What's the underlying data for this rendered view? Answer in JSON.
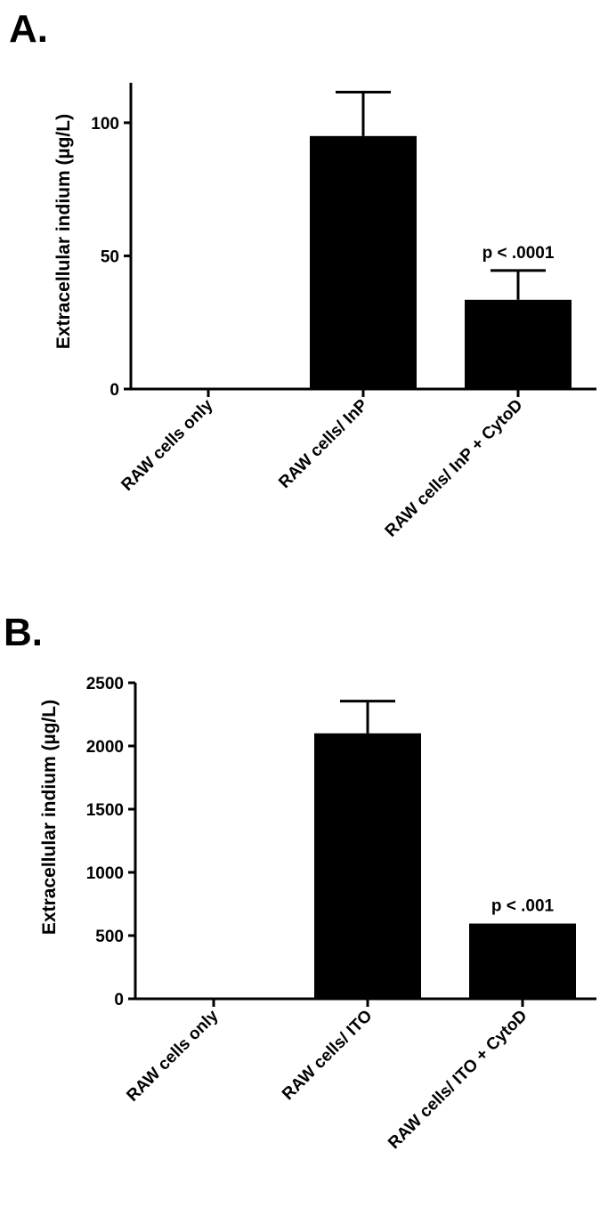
{
  "panels": [
    {
      "label": "A."
    },
    {
      "label": "B."
    }
  ],
  "chart_data": [
    {
      "type": "bar",
      "panel": "A.",
      "title": "",
      "xlabel": "",
      "ylabel": "Extracellular indium (µg/L)",
      "categories": [
        "RAW cells only",
        "RAW cells/ InP",
        "RAW cells/ InP + CytoD"
      ],
      "values": [
        0,
        95,
        33.5
      ],
      "error_bars": [
        0,
        16.5,
        11
      ],
      "ylim": [
        0,
        115
      ],
      "yticks": [
        0,
        50,
        100
      ],
      "annotations": [
        {
          "category": "RAW cells/ InP + CytoD",
          "text": "p < .0001"
        }
      ],
      "bar_color": "#000000",
      "grid": false
    },
    {
      "type": "bar",
      "panel": "B.",
      "title": "",
      "xlabel": "",
      "ylabel": "Extracellular indium (µg/L)",
      "categories": [
        "RAW cells only",
        "RAW cells/ ITO",
        "RAW cells/ ITO + CytoD"
      ],
      "values": [
        0,
        2100,
        595
      ],
      "error_bars": [
        0,
        255,
        0
      ],
      "ylim": [
        0,
        2500
      ],
      "yticks": [
        0,
        500,
        1000,
        1500,
        2000,
        2500
      ],
      "annotations": [
        {
          "category": "RAW cells/ ITO + CytoD",
          "text": "p < .001"
        }
      ],
      "bar_color": "#000000",
      "grid": false
    }
  ]
}
